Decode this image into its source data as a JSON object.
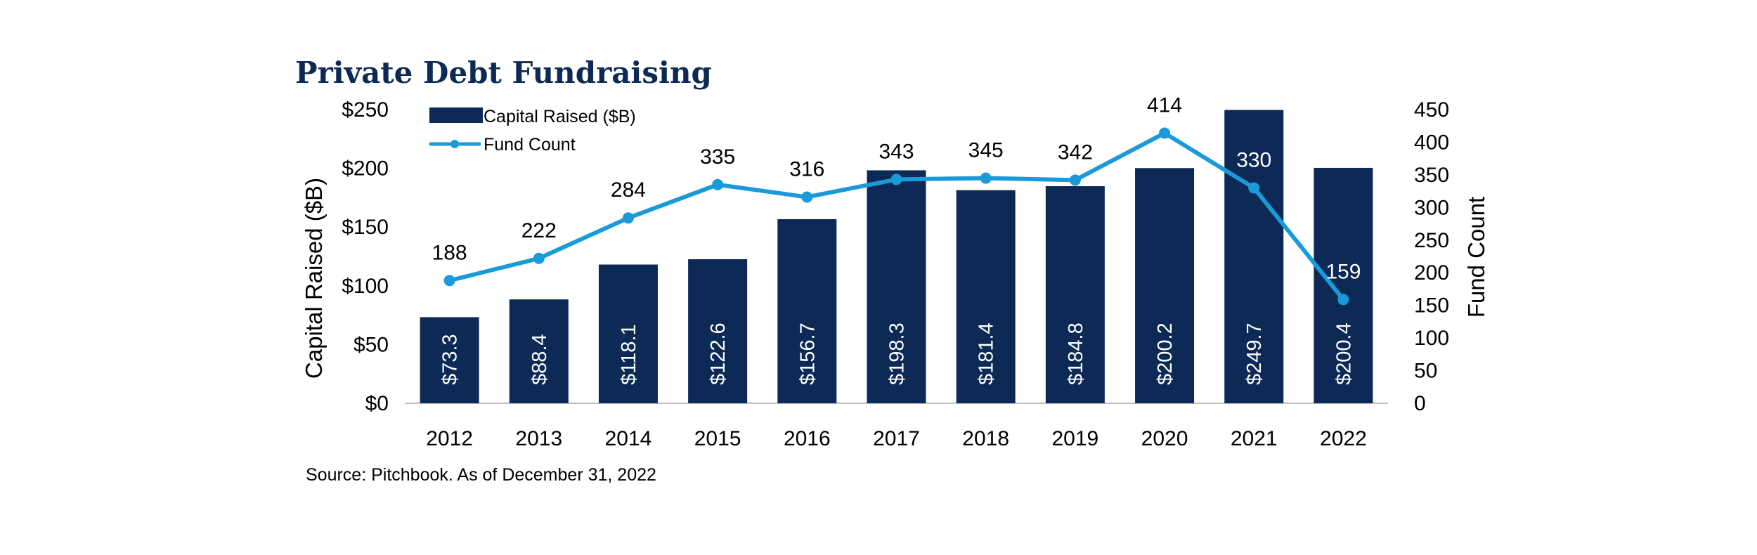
{
  "chart_data": {
    "type": "bar+line",
    "title": "Private Debt Fundraising",
    "categories": [
      "2012",
      "2013",
      "2014",
      "2015",
      "2016",
      "2017",
      "2018",
      "2019",
      "2020",
      "2021",
      "2022"
    ],
    "series": [
      {
        "name": "Capital Raised ($B)",
        "type": "bar",
        "axis": "left",
        "values": [
          73.3,
          88.4,
          118.1,
          122.6,
          156.7,
          198.3,
          181.4,
          184.8,
          200.2,
          249.7,
          200.4
        ],
        "labels": [
          "$73.3",
          "$88.4",
          "$118.1",
          "$122.6",
          "$156.7",
          "$198.3",
          "$181.4",
          "$184.8",
          "$200.2",
          "$249.7",
          "$200.4"
        ]
      },
      {
        "name": "Fund Count",
        "type": "line",
        "axis": "right",
        "values": [
          188,
          222,
          284,
          335,
          316,
          343,
          345,
          342,
          414,
          330,
          159
        ],
        "labels": [
          "188",
          "222",
          "284",
          "335",
          "316",
          "343",
          "345",
          "342",
          "414",
          "330",
          "159"
        ]
      }
    ],
    "ylabel": "Capital Raised ($B)",
    "y2label": "Fund Count",
    "ylim": [
      0,
      250
    ],
    "y2lim": [
      0,
      450
    ],
    "yticks": [
      "$0",
      "$50",
      "$100",
      "$150",
      "$200",
      "$250"
    ],
    "y2ticks": [
      "0",
      "50",
      "100",
      "150",
      "200",
      "250",
      "300",
      "350",
      "400",
      "450"
    ],
    "legend": [
      "Capital Raised ($B)",
      "Fund Count"
    ],
    "legend_position": "top-left",
    "source": "Source: Pitchbook. As of December 31, 2022"
  },
  "colors": {
    "bar": "#0c2a55",
    "line": "#1a9ad9",
    "title": "#0c2a55",
    "axis": "#bfbfbf",
    "inside_label": "#ffffff",
    "outside_label": "#000000"
  }
}
